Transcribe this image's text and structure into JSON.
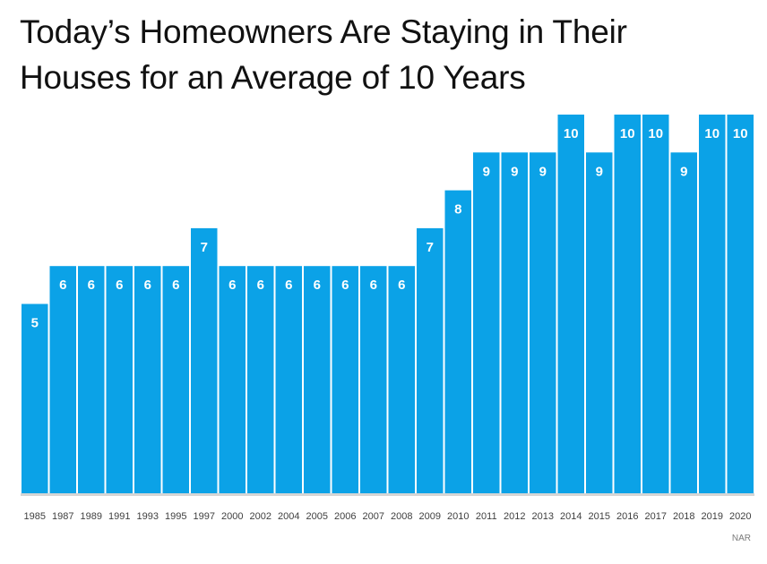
{
  "chart_data": {
    "type": "bar",
    "title_lines": [
      "Today’s Homeowners Are Staying in Their",
      "Houses for an Average of 10 Years"
    ],
    "categories": [
      "1985",
      "1987",
      "1989",
      "1991",
      "1993",
      "1995",
      "1997",
      "2000",
      "2002",
      "2004",
      "2005",
      "2006",
      "2007",
      "2008",
      "2009",
      "2010",
      "2011",
      "2012",
      "2013",
      "2014",
      "2015",
      "2016",
      "2017",
      "2018",
      "2019",
      "2020"
    ],
    "values": [
      5,
      6,
      6,
      6,
      6,
      6,
      7,
      6,
      6,
      6,
      6,
      6,
      6,
      6,
      7,
      8,
      9,
      9,
      9,
      10,
      9,
      10,
      10,
      9,
      10,
      10
    ],
    "value_labels": [
      "5",
      "6",
      "6",
      "6",
      "6",
      "6",
      "7",
      "6",
      "6",
      "6",
      "6",
      "6",
      "6",
      "6",
      "7",
      "8",
      "9",
      "9",
      "9",
      "10",
      "9",
      "10",
      "10",
      "9",
      "10",
      "10"
    ],
    "xlabel": "",
    "ylabel": "",
    "ylim": [
      0,
      10
    ],
    "grid": false,
    "legend": "none",
    "bar_color": "#0ba2e7",
    "label_color": "#ffffff",
    "source": "NAR"
  }
}
